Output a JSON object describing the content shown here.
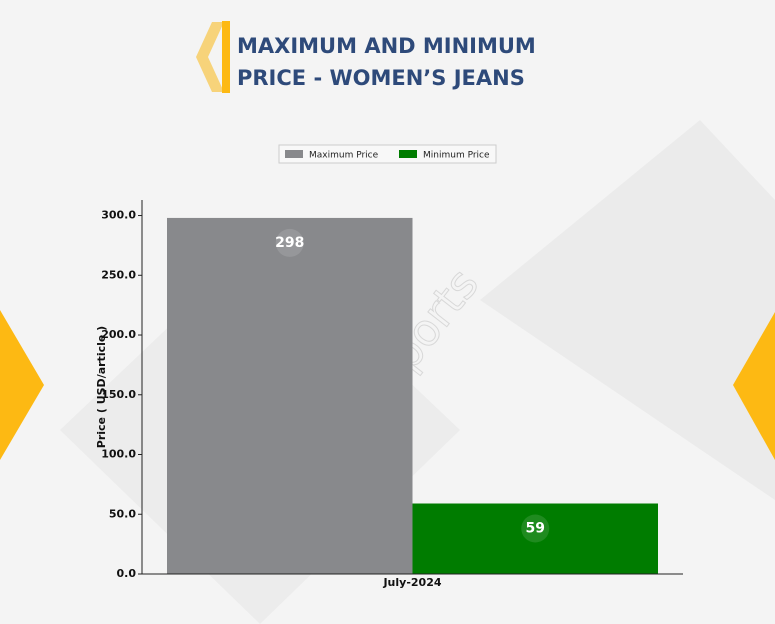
{
  "chart_data": {
    "type": "bar",
    "title": "MAXIMUM AND MINIMUM PRICE - WOMEN’S JEANS",
    "watermark": "DNJ Reports",
    "categories": [
      "July-2024"
    ],
    "series": [
      {
        "name": "Maximum Price",
        "color": "#88898c",
        "values": [
          298
        ]
      },
      {
        "name": "Minimum Price",
        "color": "#007c00",
        "values": [
          59
        ]
      }
    ],
    "ylabel": "Price ( USD/article )",
    "ylim": [
      0,
      313
    ],
    "yticks": [
      {
        "value": 0,
        "label": "0.0"
      },
      {
        "value": 50,
        "label": "50.0"
      },
      {
        "value": 100,
        "label": "100.0"
      },
      {
        "value": 150,
        "label": "150.0"
      },
      {
        "value": 200,
        "label": "200.0"
      },
      {
        "value": 250,
        "label": "250.0"
      },
      {
        "value": 300,
        "label": "300.0"
      }
    ],
    "legend": "top"
  }
}
